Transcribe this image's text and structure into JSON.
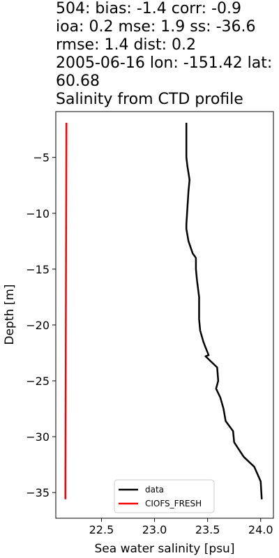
{
  "title_lines": [
    "504: bias: -1.4  corr: -0.9",
    "ioa: 0.2  mse: 1.9  ss: -36.6",
    "rmse: 1.4  dist: 0.2",
    "2005-06-16 lon: -151.42 lat:",
    "60.68",
    "Salinity from CTD profile"
  ],
  "chart_data": {
    "type": "line",
    "title": "504: bias: -1.4  corr: -0.9 ioa: 0.2  mse: 1.9  ss: -36.6 rmse: 1.4  dist: 0.2 2005-06-16 lon: -151.42 lat: 60.68 Salinity from CTD profile",
    "xlabel": "Sea water salinity [psu]",
    "ylabel": "Depth [m]",
    "xlim": [
      22.07,
      24.12
    ],
    "ylim": [
      -37.3,
      -0.9
    ],
    "xticks": [
      22.5,
      23.0,
      23.5,
      24.0
    ],
    "xtick_labels": [
      "22.5",
      "23.0",
      "23.5",
      "24.0"
    ],
    "yticks": [
      -5,
      -10,
      -15,
      -20,
      -25,
      -30,
      -35
    ],
    "ytick_labels": [
      "−5",
      "−10",
      "−15",
      "−20",
      "−25",
      "−30",
      "−35"
    ],
    "grid": false,
    "legend_position": "lower-center",
    "series": [
      {
        "name": "data",
        "color": "#000000",
        "x": [
          23.3,
          23.3,
          23.3,
          23.31,
          23.33,
          23.32,
          23.31,
          23.3,
          23.3,
          23.32,
          23.36,
          23.39,
          23.39,
          23.4,
          23.42,
          23.42,
          23.42,
          23.43,
          23.46,
          23.48,
          23.51,
          23.48,
          23.59,
          23.6,
          23.58,
          23.62,
          23.65,
          23.67,
          23.74,
          23.75,
          23.84,
          23.94,
          24.0,
          24.01
        ],
        "y": [
          -1.9,
          -3.5,
          -5.0,
          -5.8,
          -7.0,
          -8.0,
          -9.5,
          -11.0,
          -11.4,
          -12.5,
          -13.6,
          -14.0,
          -15.0,
          -16.0,
          -17.5,
          -19.0,
          -19.5,
          -20.5,
          -21.5,
          -22.0,
          -22.7,
          -22.8,
          -23.8,
          -25.0,
          -25.7,
          -26.5,
          -27.5,
          -28.6,
          -29.5,
          -30.5,
          -31.8,
          -32.7,
          -34.0,
          -35.6
        ]
      },
      {
        "name": "CIOFS_FRESH",
        "color": "#ff0000",
        "x": [
          22.17,
          22.16
        ],
        "y": [
          -1.9,
          -35.6
        ]
      }
    ]
  }
}
